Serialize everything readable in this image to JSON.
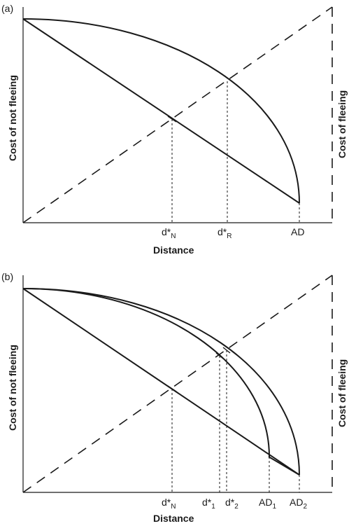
{
  "panel_a": {
    "label": "(a)",
    "xlabel": "Distance",
    "ylabel_left": "Cost of not fleeing",
    "ylabel_right": "Cost of fleeing",
    "ticks": [
      {
        "main": "d*",
        "sub": "N"
      },
      {
        "main": "d*",
        "sub": "R"
      },
      {
        "main": "AD",
        "sub": ""
      }
    ]
  },
  "panel_b": {
    "label": "(b)",
    "xlabel": "Distance",
    "ylabel_left": "Cost of not fleeing",
    "ylabel_right": "Cost of fleeing",
    "ticks": [
      {
        "main": "d*",
        "sub": "N"
      },
      {
        "main": "d*",
        "sub": "1"
      },
      {
        "main": "d*",
        "sub": "2"
      },
      {
        "main": "AD",
        "sub": "1"
      },
      {
        "main": "AD",
        "sub": "2"
      }
    ]
  }
}
